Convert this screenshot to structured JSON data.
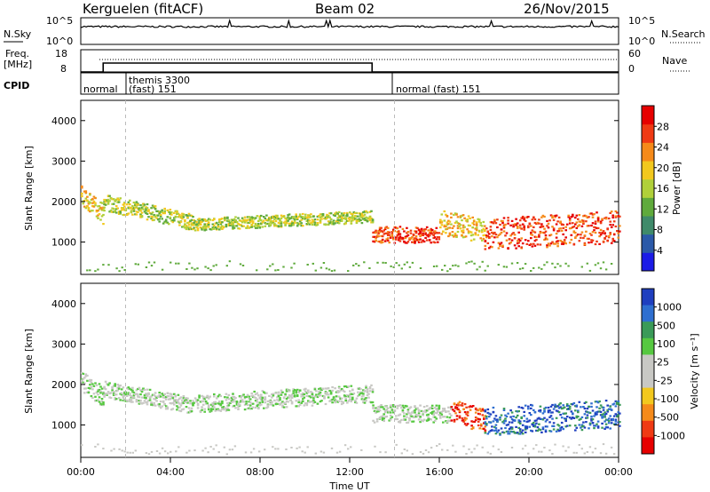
{
  "header": {
    "station": "Kerguelen (fitACF)",
    "beam": "Beam 02",
    "date": "26/Nov/2015"
  },
  "top_panels": {
    "nsky_label": "N.Sky",
    "nsky_ticks": [
      "10^5",
      "10^0"
    ],
    "nsearch_label": "N.Search",
    "nsearch_ticks": [
      "10^5",
      "10^0"
    ],
    "freq_label_line1": "Freq.",
    "freq_label_line2": "[MHz]",
    "freq_ticks": [
      "18",
      "8"
    ],
    "nave_label": "Nave",
    "nave_ticks": [
      "60",
      "0"
    ],
    "cpid_label": "CPID",
    "cpid_segments": [
      {
        "text_line1": "normal",
        "text_line2": ""
      },
      {
        "text_line1": "themis 3300",
        "text_line2": "(fast) 151"
      },
      {
        "text_line1": "normal (fast) 151",
        "text_line2": ""
      }
    ],
    "freq_steps": [
      {
        "t0": 0.0,
        "t1": 1.0,
        "mhz": 8
      },
      {
        "t0": 1.0,
        "t1": 13.0,
        "mhz": 12
      },
      {
        "t0": 13.0,
        "t1": 24.0,
        "mhz": 8
      }
    ]
  },
  "time_axis": {
    "title": "Time UT",
    "ticks": [
      "00:00",
      "04:00",
      "08:00",
      "12:00",
      "16:00",
      "20:00",
      "00:00"
    ]
  },
  "chart_data": [
    {
      "type": "heatmap",
      "name": "power",
      "ylabel": "Slant Range [km]",
      "yticks": [
        "1000",
        "2000",
        "3000",
        "4000"
      ],
      "ylim": [
        200,
        4500
      ],
      "xlim": [
        0,
        24
      ],
      "colorbar_label": "Power [dB]",
      "colorbar_ticks": [
        "4",
        "8",
        "12",
        "16",
        "20",
        "24",
        "28"
      ],
      "colors": [
        "#1b1be6",
        "#2b59a8",
        "#3f8a6a",
        "#5faa3c",
        "#b0d03a",
        "#f2c81e",
        "#f58a1a",
        "#ef3a14",
        "#e60000"
      ],
      "scatter_bands": [
        {
          "t0": 0.0,
          "t1": 1.0,
          "r_start": 2200,
          "r_end": 1700,
          "width": 250,
          "level": 5
        },
        {
          "t0": 1.0,
          "t1": 5.0,
          "r_start": 2000,
          "r_end": 1500,
          "width": 200,
          "level": 4
        },
        {
          "t0": 5.0,
          "t1": 13.0,
          "r_start": 1450,
          "r_end": 1650,
          "width": 150,
          "level": 4
        },
        {
          "t0": 13.0,
          "t1": 16.0,
          "r_start": 1200,
          "r_end": 1200,
          "width": 200,
          "level": 7
        },
        {
          "t0": 16.0,
          "t1": 18.0,
          "r_start": 1500,
          "r_end": 1300,
          "width": 300,
          "level": 5
        },
        {
          "t0": 18.0,
          "t1": 24.0,
          "r_start": 1200,
          "r_end": 1400,
          "width": 400,
          "level": 7
        }
      ]
    },
    {
      "type": "heatmap",
      "name": "velocity",
      "ylabel": "Slant Range [km]",
      "yticks": [
        "1000",
        "2000",
        "3000",
        "4000"
      ],
      "ylim": [
        200,
        4500
      ],
      "xlim": [
        0,
        24
      ],
      "colorbar_label": "Velocity [m s⁻¹]",
      "colorbar_ticks": [
        "1000",
        "500",
        "100",
        "25",
        "-25",
        "-100",
        "-500",
        "-1000"
      ],
      "colors": [
        "#1f3fbf",
        "#2f6fd0",
        "#3a9a58",
        "#56c840",
        "#c8c8c4",
        "#c8c8c4",
        "#f2c81e",
        "#f58a1a",
        "#ef3a14",
        "#e60000"
      ],
      "scatter_bands": [
        {
          "t0": 0.0,
          "t1": 1.0,
          "r_start": 2100,
          "r_end": 1700,
          "width": 250,
          "level": 4
        },
        {
          "t0": 1.0,
          "t1": 5.0,
          "r_start": 1900,
          "r_end": 1500,
          "width": 200,
          "level": 4
        },
        {
          "t0": 5.0,
          "t1": 13.0,
          "r_start": 1550,
          "r_end": 1800,
          "width": 220,
          "level": 4
        },
        {
          "t0": 13.0,
          "t1": 16.5,
          "r_start": 1300,
          "r_end": 1300,
          "width": 220,
          "level": 4
        },
        {
          "t0": 16.5,
          "t1": 18.0,
          "r_start": 1400,
          "r_end": 1100,
          "width": 300,
          "level": 8
        },
        {
          "t0": 18.0,
          "t1": 24.0,
          "r_start": 1100,
          "r_end": 1300,
          "width": 350,
          "level": 1
        }
      ]
    }
  ]
}
